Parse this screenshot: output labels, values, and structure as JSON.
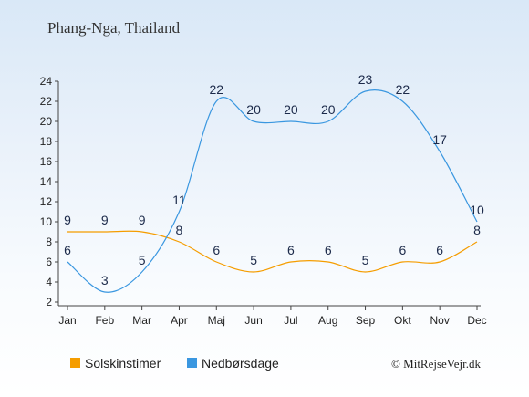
{
  "page": {
    "title": "Phang-Nga, Thailand",
    "copyright": "© MitRejseVejr.dk"
  },
  "chart_data": {
    "type": "line",
    "title": "Phang-Nga, Thailand",
    "categories": [
      "Jan",
      "Feb",
      "Mar",
      "Apr",
      "Maj",
      "Jun",
      "Jul",
      "Aug",
      "Sep",
      "Okt",
      "Nov",
      "Dec"
    ],
    "series": [
      {
        "name": "Solskinstimer",
        "color": "#f59d00",
        "values": [
          9,
          9,
          9,
          8,
          6,
          5,
          6,
          6,
          5,
          6,
          6,
          8
        ]
      },
      {
        "name": "Nedbørsdage",
        "color": "#3a97e0",
        "values": [
          6,
          3,
          5,
          11,
          22,
          20,
          20,
          20,
          23,
          22,
          17,
          10
        ]
      }
    ],
    "ylim": [
      2,
      24
    ],
    "yticks": [
      2,
      4,
      6,
      8,
      10,
      12,
      14,
      16,
      18,
      20,
      22,
      24
    ],
    "grid": false,
    "legend_position": "bottom-left",
    "xlabel": "",
    "ylabel": ""
  }
}
